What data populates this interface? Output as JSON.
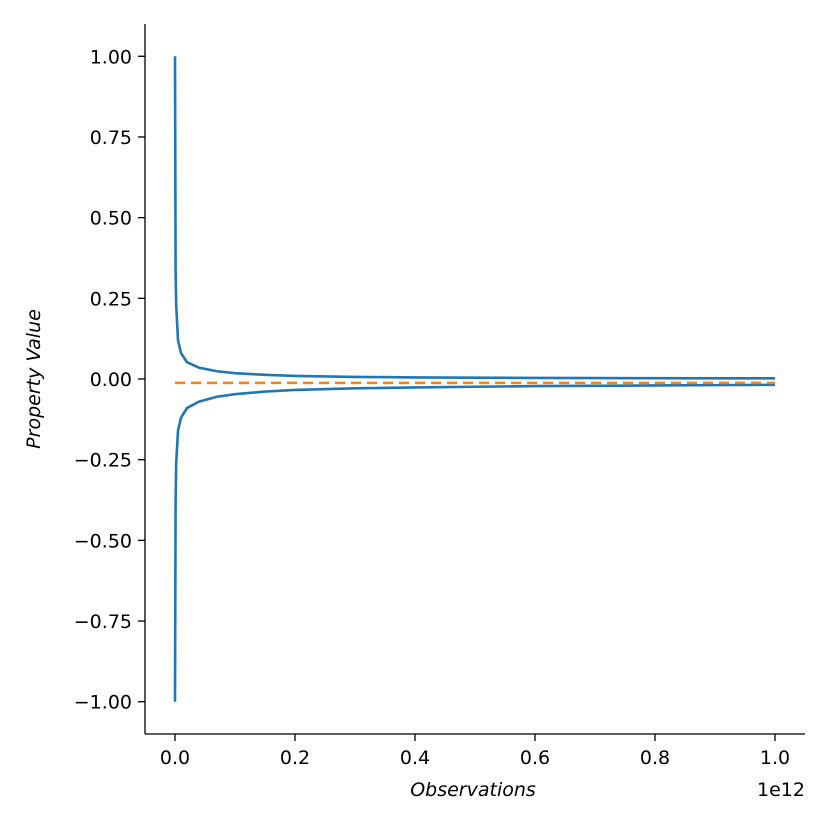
{
  "chart_data": {
    "type": "line",
    "title": "",
    "xlabel": "Observations",
    "ylabel": "Property Value",
    "x_offset_label": "1e12",
    "xlim": [
      -50000000000,
      1050000000000
    ],
    "ylim": [
      -1.1,
      1.1
    ],
    "x_ticks": [
      0,
      200000000000,
      400000000000,
      600000000000,
      800000000000,
      1000000000000
    ],
    "x_tick_labels": [
      "0.0",
      "0.2",
      "0.4",
      "0.6",
      "0.8",
      "1.0"
    ],
    "y_ticks": [
      -1.0,
      -0.75,
      -0.5,
      -0.25,
      0.0,
      0.25,
      0.5,
      0.75,
      1.0
    ],
    "y_tick_labels": [
      "−1.00",
      "−0.75",
      "−0.50",
      "−0.25",
      "0.00",
      "0.25",
      "0.50",
      "0.75",
      "1.00"
    ],
    "grid": false,
    "series": [
      {
        "style": "solid",
        "color": "#1f77b4",
        "x": [
          1,
          1000000000,
          2000000000,
          5000000000,
          10000000000,
          20000000000,
          40000000000,
          70000000000,
          100000000000,
          150000000000,
          200000000000,
          300000000000,
          400000000000,
          500000000000,
          600000000000,
          700000000000,
          800000000000,
          900000000000,
          1000000000000
        ],
        "y": [
          1.0,
          0.33,
          0.23,
          0.12,
          0.08,
          0.052,
          0.035,
          0.024,
          0.018,
          0.013,
          0.0095,
          0.0065,
          0.005,
          0.004,
          0.0033,
          0.0028,
          0.0025,
          0.0022,
          0.002
        ]
      },
      {
        "style": "solid",
        "color": "#1f77b4",
        "x": [
          1,
          1000000000,
          2000000000,
          5000000000,
          10000000000,
          20000000000,
          40000000000,
          70000000000,
          100000000000,
          150000000000,
          200000000000,
          300000000000,
          400000000000,
          500000000000,
          600000000000,
          700000000000,
          800000000000,
          900000000000,
          1000000000000
        ],
        "y": [
          -1.0,
          -0.38,
          -0.26,
          -0.16,
          -0.12,
          -0.09,
          -0.07,
          -0.055,
          -0.047,
          -0.039,
          -0.034,
          -0.029,
          -0.026,
          -0.024,
          -0.022,
          -0.021,
          -0.02,
          -0.019,
          -0.018
        ]
      },
      {
        "style": "dashed",
        "color": "#ff7f0e",
        "x": [
          0,
          1000000000000
        ],
        "y": [
          -0.012,
          -0.012
        ]
      }
    ]
  }
}
